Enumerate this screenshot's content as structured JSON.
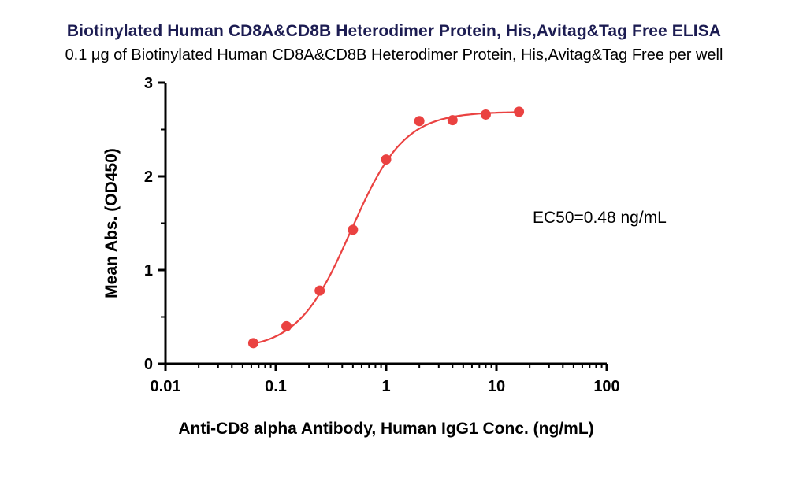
{
  "chart_data": {
    "type": "scatter",
    "title": "Biotinylated Human CD8A&CD8B Heterodimer Protein, His,Avitag&Tag Free ELISA",
    "subtitle": "0.1 μg of Biotinylated Human CD8A&CD8B Heterodimer Protein, His,Avitag&Tag Free per well",
    "xlabel": "Anti-CD8 alpha Antibody, Human IgG1 Conc. (ng/mL)",
    "ylabel": "Mean Abs. (OD450)",
    "x_scale": "log10",
    "xlim": [
      0.01,
      100
    ],
    "ylim": [
      0,
      3
    ],
    "x_ticks": [
      0.01,
      0.1,
      1,
      10,
      100
    ],
    "y_ticks": [
      0,
      1,
      2,
      3
    ],
    "y_minor_ticks": [
      0.5,
      1.5,
      2.5
    ],
    "x": [
      0.0625,
      0.125,
      0.25,
      0.5,
      1,
      2,
      4,
      8,
      16
    ],
    "y": [
      0.22,
      0.4,
      0.78,
      1.43,
      2.18,
      2.59,
      2.6,
      2.66,
      2.69
    ],
    "annotation": "EC50=0.48 ng/mL",
    "ec50_ng_ml": 0.48,
    "fit": {
      "model": "4PL",
      "bottom": 0.15,
      "top": 2.69,
      "ec50": 0.48,
      "hill": 1.8
    },
    "legend": "none",
    "grid": false
  },
  "colors": {
    "series": "#ea4241",
    "axis": "#000000",
    "title": "#1c1c52",
    "text": "#000000"
  }
}
